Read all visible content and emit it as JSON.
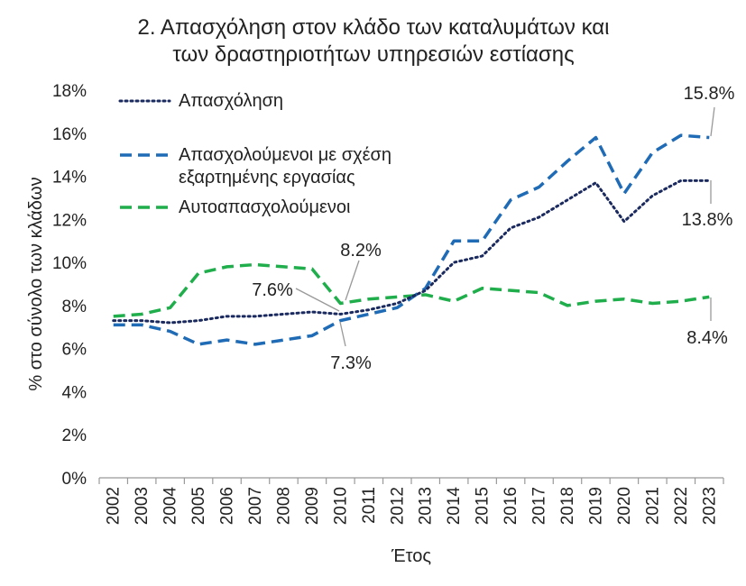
{
  "chart_data": {
    "type": "line",
    "title_lines": [
      "2. Απασχόληση στον κλάδο των καταλυμάτων και",
      "των δραστηριοτήτων υπηρεσιών εστίασης"
    ],
    "xlabel": "Έτος",
    "ylabel": "% στο σύνολο των κλάδων",
    "ylim": [
      0,
      18
    ],
    "y_ticks": [
      "0%",
      "2%",
      "4%",
      "6%",
      "8%",
      "10%",
      "12%",
      "14%",
      "16%",
      "18%"
    ],
    "x": [
      "2002",
      "2003",
      "2004",
      "2005",
      "2006",
      "2007",
      "2008",
      "2009",
      "2010",
      "2011",
      "2012",
      "2013",
      "2014",
      "2015",
      "2016",
      "2017",
      "2018",
      "2019",
      "2020",
      "2021",
      "2022",
      "2023"
    ],
    "legend_position": "top-left",
    "series": [
      {
        "name": "Απασχόληση",
        "style": "dotted",
        "color": "#1b2a5e",
        "values": [
          7.3,
          7.3,
          7.2,
          7.3,
          7.5,
          7.5,
          7.6,
          7.7,
          7.6,
          7.8,
          8.1,
          8.7,
          10.0,
          10.3,
          11.6,
          12.1,
          12.9,
          13.7,
          11.9,
          13.1,
          13.8,
          13.8
        ]
      },
      {
        "name_lines": [
          "Απασχολούμενοι με σχέση",
          "εξαρτημένης εργασίας"
        ],
        "style": "dashed",
        "color": "#1f6bb5",
        "values": [
          7.1,
          7.1,
          6.8,
          6.2,
          6.4,
          6.2,
          6.4,
          6.6,
          7.3,
          7.6,
          7.9,
          8.8,
          11.0,
          11.0,
          12.9,
          13.5,
          14.7,
          15.8,
          13.2,
          15.1,
          15.9,
          15.8
        ]
      },
      {
        "name": "Αυτοαπασχολούμενοι",
        "style": "dashed",
        "color": "#1fae4b",
        "values": [
          7.5,
          7.6,
          7.9,
          9.5,
          9.8,
          9.9,
          9.8,
          9.7,
          8.1,
          8.3,
          8.4,
          8.5,
          8.2,
          8.8,
          8.7,
          8.6,
          8.0,
          8.2,
          8.3,
          8.1,
          8.2,
          8.4
        ]
      }
    ],
    "annotations": [
      {
        "text": "15.8%"
      },
      {
        "text": "13.8%"
      },
      {
        "text": "8.4%"
      },
      {
        "text": "8.2%"
      },
      {
        "text": "7.6%"
      },
      {
        "text": "7.3%"
      }
    ]
  }
}
